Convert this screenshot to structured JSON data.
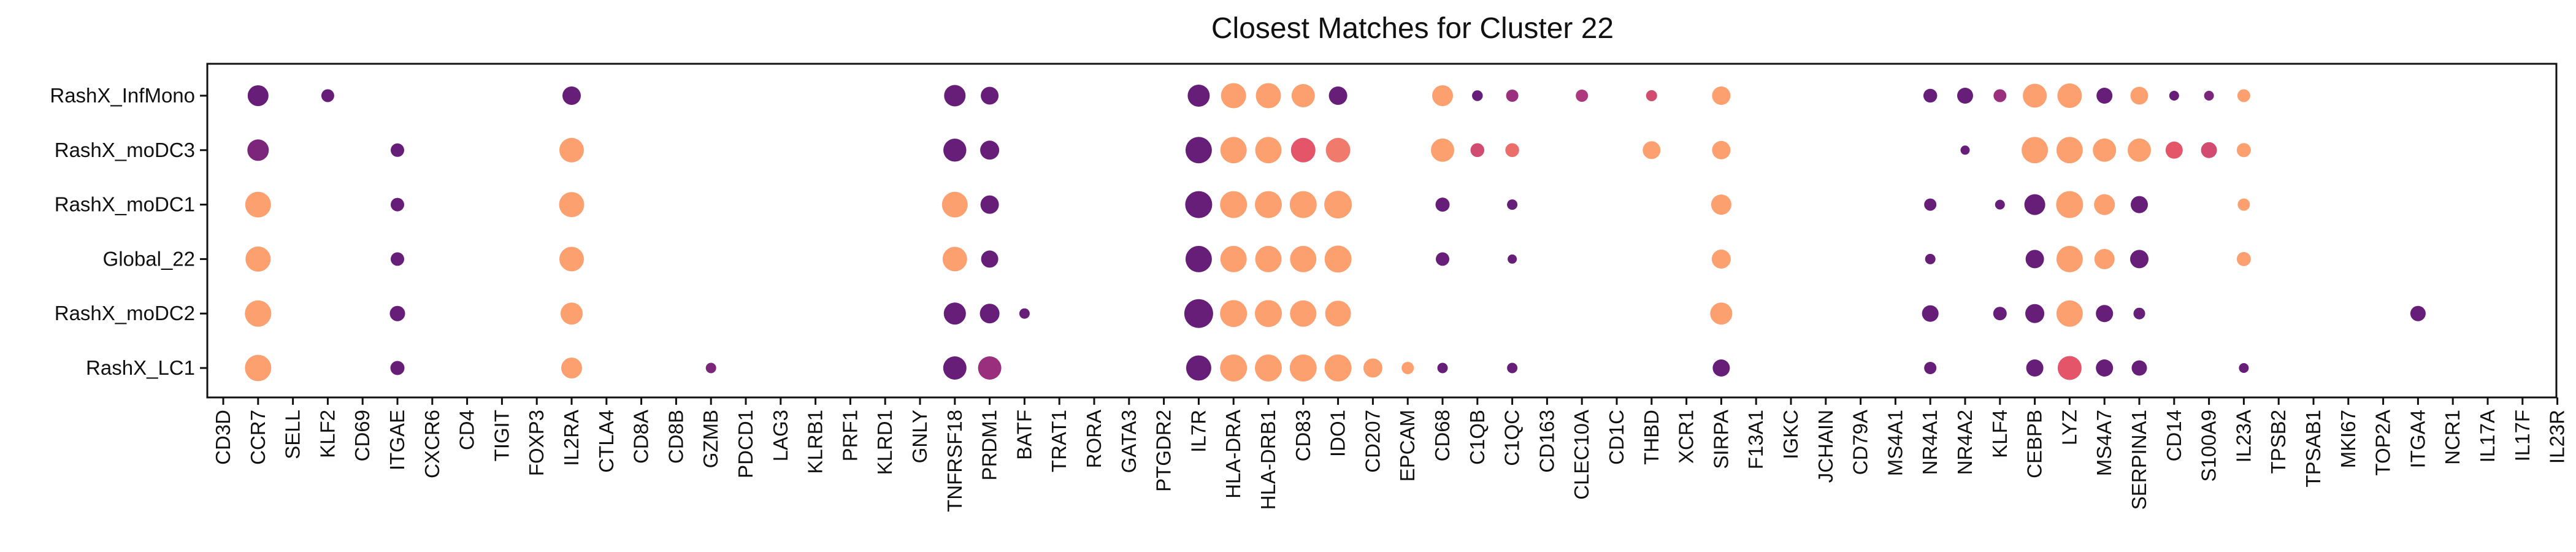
{
  "chart_data": {
    "type": "scatter",
    "title": "Closest Matches for Cluster 22",
    "xlabel": "",
    "ylabel": "",
    "x_categories": [
      "CD3D",
      "CCR7",
      "SELL",
      "KLF2",
      "CD69",
      "ITGAE",
      "CXCR6",
      "CD4",
      "TIGIT",
      "FOXP3",
      "IL2RA",
      "CTLA4",
      "CD8A",
      "CD8B",
      "GZMB",
      "PDCD1",
      "LAG3",
      "KLRB1",
      "PRF1",
      "KLRD1",
      "GNLY",
      "TNFRSF18",
      "PRDM1",
      "BATF",
      "TRAT1",
      "RORA",
      "GATA3",
      "PTGDR2",
      "IL7R",
      "HLA-DRA",
      "HLA-DRB1",
      "CD83",
      "IDO1",
      "CD207",
      "EPCAM",
      "CD68",
      "C1QB",
      "C1QC",
      "CD163",
      "CLEC10A",
      "CD1C",
      "THBD",
      "XCR1",
      "SIRPA",
      "F13A1",
      "IGKC",
      "JCHAIN",
      "CD79A",
      "MS4A1",
      "NR4A1",
      "NR4A2",
      "KLF4",
      "CEBPB",
      "LYZ",
      "MS4A7",
      "SERPINA1",
      "CD14",
      "S100A9",
      "IL23A",
      "TPSB2",
      "TPSAB1",
      "MKI67",
      "TOP2A",
      "ITGA4",
      "NCR1",
      "IL17A",
      "IL17F",
      "IL23R"
    ],
    "y_categories": [
      "RashX_InfMono",
      "RashX_moDC3",
      "RashX_moDC1",
      "Global_22",
      "RashX_moDC2",
      "RashX_LC1"
    ],
    "size_scale": "relative dot size 0-1",
    "color_scale": "0 = dark purple, 1 = orange (magma-like)",
    "grid": false,
    "legend": "none",
    "colors": {
      "dark": "#5d1a78",
      "mid": "#a4337f",
      "pink": "#e5556a",
      "light": "#fba06e"
    },
    "points": [
      {
        "row": "RashX_InfMono",
        "gene": "CCR7",
        "size": 0.68,
        "color": 0.05
      },
      {
        "row": "RashX_InfMono",
        "gene": "KLF2",
        "size": 0.42,
        "color": 0.05
      },
      {
        "row": "RashX_InfMono",
        "gene": "IL2RA",
        "size": 0.6,
        "color": 0.05
      },
      {
        "row": "RashX_InfMono",
        "gene": "TNFRSF18",
        "size": 0.7,
        "color": 0.05
      },
      {
        "row": "RashX_InfMono",
        "gene": "PRDM1",
        "size": 0.58,
        "color": 0.05
      },
      {
        "row": "RashX_InfMono",
        "gene": "IL7R",
        "size": 0.72,
        "color": 0.05
      },
      {
        "row": "RashX_InfMono",
        "gene": "HLA-DRA",
        "size": 0.82,
        "color": 1.0
      },
      {
        "row": "RashX_InfMono",
        "gene": "HLA-DRB1",
        "size": 0.82,
        "color": 1.0
      },
      {
        "row": "RashX_InfMono",
        "gene": "CD83",
        "size": 0.76,
        "color": 1.0
      },
      {
        "row": "RashX_InfMono",
        "gene": "IDO1",
        "size": 0.6,
        "color": 0.05
      },
      {
        "row": "RashX_InfMono",
        "gene": "CD68",
        "size": 0.68,
        "color": 1.0
      },
      {
        "row": "RashX_InfMono",
        "gene": "C1QB",
        "size": 0.35,
        "color": 0.05
      },
      {
        "row": "RashX_InfMono",
        "gene": "C1QC",
        "size": 0.4,
        "color": 0.3
      },
      {
        "row": "RashX_InfMono",
        "gene": "CLEC10A",
        "size": 0.4,
        "color": 0.4
      },
      {
        "row": "RashX_InfMono",
        "gene": "THBD",
        "size": 0.36,
        "color": 0.6
      },
      {
        "row": "RashX_InfMono",
        "gene": "SIRPA",
        "size": 0.6,
        "color": 1.0
      },
      {
        "row": "RashX_InfMono",
        "gene": "NR4A1",
        "size": 0.45,
        "color": 0.05
      },
      {
        "row": "RashX_InfMono",
        "gene": "NR4A2",
        "size": 0.52,
        "color": 0.05
      },
      {
        "row": "RashX_InfMono",
        "gene": "KLF4",
        "size": 0.42,
        "color": 0.3
      },
      {
        "row": "RashX_InfMono",
        "gene": "CEBPB",
        "size": 0.78,
        "color": 1.0
      },
      {
        "row": "RashX_InfMono",
        "gene": "LYZ",
        "size": 0.8,
        "color": 1.0
      },
      {
        "row": "RashX_InfMono",
        "gene": "MS4A7",
        "size": 0.52,
        "color": 0.05
      },
      {
        "row": "RashX_InfMono",
        "gene": "SERPINA1",
        "size": 0.58,
        "color": 1.0
      },
      {
        "row": "RashX_InfMono",
        "gene": "CD14",
        "size": 0.32,
        "color": 0.05
      },
      {
        "row": "RashX_InfMono",
        "gene": "S100A9",
        "size": 0.32,
        "color": 0.15
      },
      {
        "row": "RashX_InfMono",
        "gene": "IL23A",
        "size": 0.42,
        "color": 1.0
      },
      {
        "row": "RashX_moDC3",
        "gene": "CCR7",
        "size": 0.7,
        "color": 0.15
      },
      {
        "row": "RashX_moDC3",
        "gene": "ITGAE",
        "size": 0.44,
        "color": 0.05
      },
      {
        "row": "RashX_moDC3",
        "gene": "IL2RA",
        "size": 0.8,
        "color": 1.0
      },
      {
        "row": "RashX_moDC3",
        "gene": "TNFRSF18",
        "size": 0.75,
        "color": 0.05
      },
      {
        "row": "RashX_moDC3",
        "gene": "PRDM1",
        "size": 0.62,
        "color": 0.05
      },
      {
        "row": "RashX_moDC3",
        "gene": "IL7R",
        "size": 0.86,
        "color": 0.05
      },
      {
        "row": "RashX_moDC3",
        "gene": "HLA-DRA",
        "size": 0.86,
        "color": 1.0
      },
      {
        "row": "RashX_moDC3",
        "gene": "HLA-DRB1",
        "size": 0.86,
        "color": 1.0
      },
      {
        "row": "RashX_moDC3",
        "gene": "CD83",
        "size": 0.8,
        "color": 0.7
      },
      {
        "row": "RashX_moDC3",
        "gene": "IDO1",
        "size": 0.8,
        "color": 0.85
      },
      {
        "row": "RashX_moDC3",
        "gene": "CD68",
        "size": 0.76,
        "color": 1.0
      },
      {
        "row": "RashX_moDC3",
        "gene": "C1QB",
        "size": 0.45,
        "color": 0.6
      },
      {
        "row": "RashX_moDC3",
        "gene": "C1QC",
        "size": 0.45,
        "color": 0.8
      },
      {
        "row": "RashX_moDC3",
        "gene": "THBD",
        "size": 0.58,
        "color": 1.0
      },
      {
        "row": "RashX_moDC3",
        "gene": "SIRPA",
        "size": 0.6,
        "color": 1.0
      },
      {
        "row": "RashX_moDC3",
        "gene": "NR4A2",
        "size": 0.3,
        "color": 0.05
      },
      {
        "row": "RashX_moDC3",
        "gene": "CEBPB",
        "size": 0.86,
        "color": 1.0
      },
      {
        "row": "RashX_moDC3",
        "gene": "LYZ",
        "size": 0.86,
        "color": 1.0
      },
      {
        "row": "RashX_moDC3",
        "gene": "MS4A7",
        "size": 0.76,
        "color": 1.0
      },
      {
        "row": "RashX_moDC3",
        "gene": "SERPINA1",
        "size": 0.76,
        "color": 1.0
      },
      {
        "row": "RashX_moDC3",
        "gene": "CD14",
        "size": 0.56,
        "color": 0.7
      },
      {
        "row": "RashX_moDC3",
        "gene": "S100A9",
        "size": 0.52,
        "color": 0.6
      },
      {
        "row": "RashX_moDC3",
        "gene": "IL23A",
        "size": 0.46,
        "color": 1.0
      },
      {
        "row": "RashX_moDC1",
        "gene": "CCR7",
        "size": 0.84,
        "color": 1.0
      },
      {
        "row": "RashX_moDC1",
        "gene": "ITGAE",
        "size": 0.44,
        "color": 0.05
      },
      {
        "row": "RashX_moDC1",
        "gene": "IL2RA",
        "size": 0.82,
        "color": 1.0
      },
      {
        "row": "RashX_moDC1",
        "gene": "TNFRSF18",
        "size": 0.84,
        "color": 1.0
      },
      {
        "row": "RashX_moDC1",
        "gene": "PRDM1",
        "size": 0.6,
        "color": 0.05
      },
      {
        "row": "RashX_moDC1",
        "gene": "IL7R",
        "size": 0.88,
        "color": 0.05
      },
      {
        "row": "RashX_moDC1",
        "gene": "HLA-DRA",
        "size": 0.88,
        "color": 1.0
      },
      {
        "row": "RashX_moDC1",
        "gene": "HLA-DRB1",
        "size": 0.88,
        "color": 1.0
      },
      {
        "row": "RashX_moDC1",
        "gene": "CD83",
        "size": 0.88,
        "color": 1.0
      },
      {
        "row": "RashX_moDC1",
        "gene": "IDO1",
        "size": 0.9,
        "color": 1.0
      },
      {
        "row": "RashX_moDC1",
        "gene": "CD68",
        "size": 0.46,
        "color": 0.05
      },
      {
        "row": "RashX_moDC1",
        "gene": "C1QC",
        "size": 0.34,
        "color": 0.05
      },
      {
        "row": "RashX_moDC1",
        "gene": "SIRPA",
        "size": 0.66,
        "color": 1.0
      },
      {
        "row": "RashX_moDC1",
        "gene": "NR4A1",
        "size": 0.4,
        "color": 0.05
      },
      {
        "row": "RashX_moDC1",
        "gene": "KLF4",
        "size": 0.32,
        "color": 0.05
      },
      {
        "row": "RashX_moDC1",
        "gene": "CEBPB",
        "size": 0.68,
        "color": 0.05
      },
      {
        "row": "RashX_moDC1",
        "gene": "LYZ",
        "size": 0.88,
        "color": 1.0
      },
      {
        "row": "RashX_moDC1",
        "gene": "MS4A7",
        "size": 0.68,
        "color": 1.0
      },
      {
        "row": "RashX_moDC1",
        "gene": "SERPINA1",
        "size": 0.56,
        "color": 0.05
      },
      {
        "row": "RashX_moDC1",
        "gene": "IL23A",
        "size": 0.4,
        "color": 1.0
      },
      {
        "row": "Global_22",
        "gene": "CCR7",
        "size": 0.82,
        "color": 1.0
      },
      {
        "row": "Global_22",
        "gene": "ITGAE",
        "size": 0.44,
        "color": 0.05
      },
      {
        "row": "Global_22",
        "gene": "IL2RA",
        "size": 0.8,
        "color": 1.0
      },
      {
        "row": "Global_22",
        "gene": "TNFRSF18",
        "size": 0.8,
        "color": 1.0
      },
      {
        "row": "Global_22",
        "gene": "PRDM1",
        "size": 0.56,
        "color": 0.05
      },
      {
        "row": "Global_22",
        "gene": "IL7R",
        "size": 0.86,
        "color": 0.05
      },
      {
        "row": "Global_22",
        "gene": "HLA-DRA",
        "size": 0.86,
        "color": 1.0
      },
      {
        "row": "Global_22",
        "gene": "HLA-DRB1",
        "size": 0.86,
        "color": 1.0
      },
      {
        "row": "Global_22",
        "gene": "CD83",
        "size": 0.86,
        "color": 1.0
      },
      {
        "row": "Global_22",
        "gene": "IDO1",
        "size": 0.88,
        "color": 1.0
      },
      {
        "row": "Global_22",
        "gene": "CD68",
        "size": 0.44,
        "color": 0.05
      },
      {
        "row": "Global_22",
        "gene": "C1QC",
        "size": 0.3,
        "color": 0.05
      },
      {
        "row": "Global_22",
        "gene": "SIRPA",
        "size": 0.62,
        "color": 1.0
      },
      {
        "row": "Global_22",
        "gene": "NR4A1",
        "size": 0.34,
        "color": 0.05
      },
      {
        "row": "Global_22",
        "gene": "CEBPB",
        "size": 0.6,
        "color": 0.05
      },
      {
        "row": "Global_22",
        "gene": "LYZ",
        "size": 0.86,
        "color": 1.0
      },
      {
        "row": "Global_22",
        "gene": "MS4A7",
        "size": 0.66,
        "color": 1.0
      },
      {
        "row": "Global_22",
        "gene": "SERPINA1",
        "size": 0.6,
        "color": 0.05
      },
      {
        "row": "Global_22",
        "gene": "IL23A",
        "size": 0.46,
        "color": 1.0
      },
      {
        "row": "RashX_moDC2",
        "gene": "CCR7",
        "size": 0.86,
        "color": 1.0
      },
      {
        "row": "RashX_moDC2",
        "gene": "ITGAE",
        "size": 0.5,
        "color": 0.05
      },
      {
        "row": "RashX_moDC2",
        "gene": "IL2RA",
        "size": 0.72,
        "color": 1.0
      },
      {
        "row": "RashX_moDC2",
        "gene": "TNFRSF18",
        "size": 0.72,
        "color": 0.05
      },
      {
        "row": "RashX_moDC2",
        "gene": "PRDM1",
        "size": 0.64,
        "color": 0.05
      },
      {
        "row": "RashX_moDC2",
        "gene": "BATF",
        "size": 0.34,
        "color": 0.05
      },
      {
        "row": "RashX_moDC2",
        "gene": "IL7R",
        "size": 0.94,
        "color": 0.05
      },
      {
        "row": "RashX_moDC2",
        "gene": "HLA-DRA",
        "size": 0.88,
        "color": 1.0
      },
      {
        "row": "RashX_moDC2",
        "gene": "HLA-DRB1",
        "size": 0.88,
        "color": 1.0
      },
      {
        "row": "RashX_moDC2",
        "gene": "CD83",
        "size": 0.86,
        "color": 1.0
      },
      {
        "row": "RashX_moDC2",
        "gene": "IDO1",
        "size": 0.84,
        "color": 1.0
      },
      {
        "row": "RashX_moDC2",
        "gene": "SIRPA",
        "size": 0.72,
        "color": 1.0
      },
      {
        "row": "RashX_moDC2",
        "gene": "NR4A1",
        "size": 0.54,
        "color": 0.05
      },
      {
        "row": "RashX_moDC2",
        "gene": "KLF4",
        "size": 0.44,
        "color": 0.05
      },
      {
        "row": "RashX_moDC2",
        "gene": "CEBPB",
        "size": 0.62,
        "color": 0.05
      },
      {
        "row": "RashX_moDC2",
        "gene": "LYZ",
        "size": 0.86,
        "color": 1.0
      },
      {
        "row": "RashX_moDC2",
        "gene": "MS4A7",
        "size": 0.56,
        "color": 0.05
      },
      {
        "row": "RashX_moDC2",
        "gene": "SERPINA1",
        "size": 0.38,
        "color": 0.05
      },
      {
        "row": "RashX_moDC2",
        "gene": "ITGA4",
        "size": 0.5,
        "color": 0.05
      },
      {
        "row": "RashX_LC1",
        "gene": "CCR7",
        "size": 0.86,
        "color": 1.0
      },
      {
        "row": "RashX_LC1",
        "gene": "ITGAE",
        "size": 0.46,
        "color": 0.05
      },
      {
        "row": "RashX_LC1",
        "gene": "IL2RA",
        "size": 0.68,
        "color": 1.0
      },
      {
        "row": "RashX_LC1",
        "gene": "GZMB",
        "size": 0.34,
        "color": 0.15
      },
      {
        "row": "RashX_LC1",
        "gene": "TNFRSF18",
        "size": 0.76,
        "color": 0.05
      },
      {
        "row": "RashX_LC1",
        "gene": "PRDM1",
        "size": 0.76,
        "color": 0.3
      },
      {
        "row": "RashX_LC1",
        "gene": "IL7R",
        "size": 0.82,
        "color": 0.05
      },
      {
        "row": "RashX_LC1",
        "gene": "HLA-DRA",
        "size": 0.88,
        "color": 1.0
      },
      {
        "row": "RashX_LC1",
        "gene": "HLA-DRB1",
        "size": 0.88,
        "color": 1.0
      },
      {
        "row": "RashX_LC1",
        "gene": "CD83",
        "size": 0.88,
        "color": 1.0
      },
      {
        "row": "RashX_LC1",
        "gene": "IDO1",
        "size": 0.88,
        "color": 1.0
      },
      {
        "row": "RashX_LC1",
        "gene": "CD207",
        "size": 0.62,
        "color": 1.0
      },
      {
        "row": "RashX_LC1",
        "gene": "EPCAM",
        "size": 0.4,
        "color": 1.0
      },
      {
        "row": "RashX_LC1",
        "gene": "CD68",
        "size": 0.34,
        "color": 0.05
      },
      {
        "row": "RashX_LC1",
        "gene": "C1QC",
        "size": 0.34,
        "color": 0.05
      },
      {
        "row": "RashX_LC1",
        "gene": "SIRPA",
        "size": 0.56,
        "color": 0.05
      },
      {
        "row": "RashX_LC1",
        "gene": "NR4A1",
        "size": 0.4,
        "color": 0.05
      },
      {
        "row": "RashX_LC1",
        "gene": "CEBPB",
        "size": 0.56,
        "color": 0.05
      },
      {
        "row": "RashX_LC1",
        "gene": "LYZ",
        "size": 0.78,
        "color": 0.7
      },
      {
        "row": "RashX_LC1",
        "gene": "MS4A7",
        "size": 0.56,
        "color": 0.05
      },
      {
        "row": "RashX_LC1",
        "gene": "SERPINA1",
        "size": 0.5,
        "color": 0.05
      },
      {
        "row": "RashX_LC1",
        "gene": "IL23A",
        "size": 0.32,
        "color": 0.05
      }
    ]
  }
}
